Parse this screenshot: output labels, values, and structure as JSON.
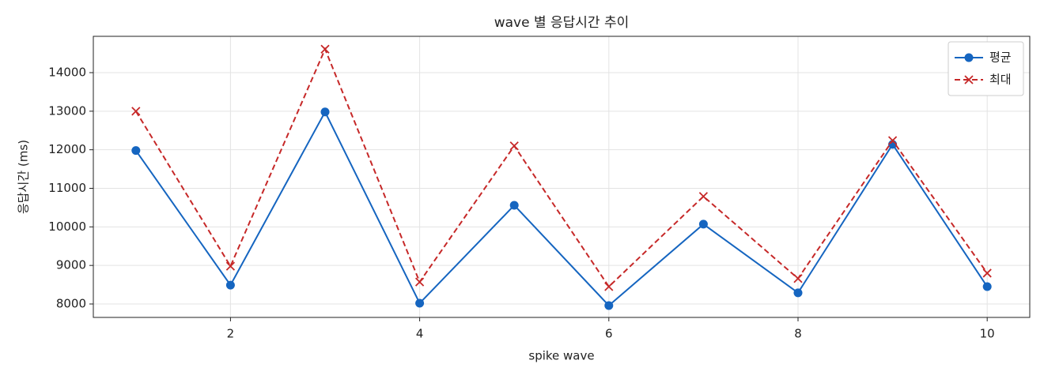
{
  "chart_data": {
    "type": "line",
    "title": "wave 별 응답시간 추이",
    "xlabel": "spike wave",
    "ylabel": "응답시간 (ms)",
    "x": [
      1,
      2,
      3,
      4,
      5,
      6,
      7,
      8,
      9,
      10
    ],
    "series": [
      {
        "name": "평균",
        "color": "#1565c0",
        "marker": "circle",
        "dashed": false,
        "values": [
          11980,
          8490,
          12980,
          8020,
          10560,
          7960,
          10070,
          8290,
          12140,
          8450
        ]
      },
      {
        "name": "최대",
        "color": "#c62828",
        "marker": "x",
        "dashed": true,
        "values": [
          13000,
          8980,
          14610,
          8570,
          12100,
          8450,
          10790,
          8660,
          12240,
          8800
        ]
      }
    ],
    "xlim": [
      0.55,
      10.45
    ],
    "ylim": [
      7652,
      14942
    ],
    "xticks": [
      2,
      4,
      6,
      8,
      10
    ],
    "yticks": [
      8000,
      9000,
      10000,
      11000,
      12000,
      13000,
      14000
    ],
    "grid": true,
    "legend": "upper right"
  }
}
